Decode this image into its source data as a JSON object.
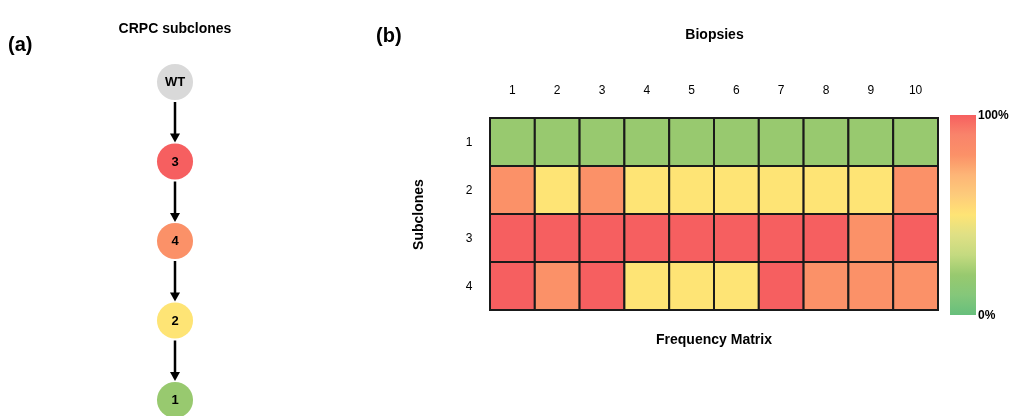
{
  "chart_data": [
    {
      "type": "other",
      "title": "CRPC subclones",
      "categories": [
        "WT",
        "3",
        "4",
        "2",
        "1"
      ],
      "colors": [
        "#d9d9d9",
        "#f65f60",
        "#fb9168",
        "#fee475",
        "#98c96f"
      ],
      "annotations": [
        "(a)"
      ]
    },
    {
      "type": "heatmap",
      "xlabel": "Biopsies",
      "ylabel": "Subclones",
      "title": "Frequency Matrix",
      "annotations": [
        "(b)"
      ],
      "categories": [
        "1",
        "2",
        "3",
        "4",
        "5",
        "6",
        "7",
        "8",
        "9",
        "10"
      ],
      "y_categories": [
        "1",
        "2",
        "3",
        "4"
      ],
      "cells": [
        [
          20,
          20,
          20,
          20,
          20,
          20,
          20,
          20,
          20,
          20
        ],
        [
          80,
          50,
          80,
          50,
          50,
          50,
          50,
          50,
          50,
          80
        ],
        [
          100,
          100,
          100,
          100,
          100,
          100,
          100,
          100,
          80,
          100
        ],
        [
          100,
          80,
          100,
          50,
          50,
          50,
          100,
          80,
          80,
          80
        ]
      ],
      "clim": [
        0,
        100
      ],
      "cticks": [
        {
          "value": 0,
          "label": "0%"
        },
        {
          "value": 100,
          "label": "100%"
        }
      ],
      "colors": [
        "#67bf7c",
        "#85c77a",
        "#98c96f",
        "#c4da80",
        "#dfe085",
        "#fee475",
        "#fdcb7b",
        "#fdb577",
        "#fb9168",
        "#f9846b",
        "#f65f60"
      ]
    }
  ]
}
